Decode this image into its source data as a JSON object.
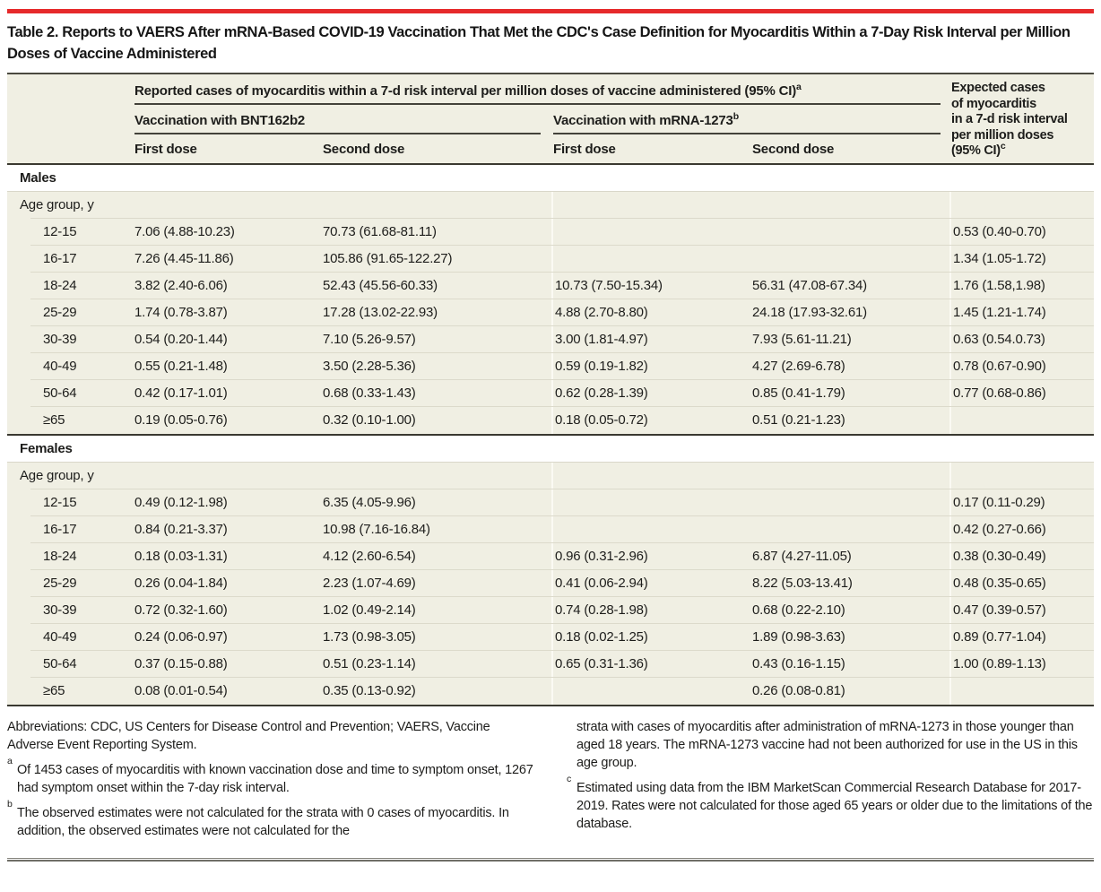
{
  "title": "Table 2. Reports to VAERS After mRNA-Based COVID-19 Vaccination That Met the CDC's Case Definition for Myocarditis Within a 7-Day Risk Interval per Million Doses of Vaccine Administered",
  "colors": {
    "accent_red": "#e62a2b",
    "table_background": "#f0efe3"
  },
  "table": {
    "header": {
      "spanner": "Reported cases of myocarditis within a 7-d risk interval per million doses of vaccine administered (95% CI)",
      "spanner_sup": "a",
      "group_bnt": "Vaccination with BNT162b2",
      "group_mrna": "Vaccination with mRNA-1273",
      "group_mrna_sup": "b",
      "dose_cols": [
        "First dose",
        "Second dose",
        "First dose",
        "Second dose"
      ],
      "expected_lines": [
        "Expected cases",
        "of myocarditis",
        "in a 7-d risk interval",
        "per million doses",
        "(95% CI)"
      ],
      "expected_sup": "c"
    },
    "sections": [
      {
        "label": "Males",
        "subheader": "Age group, y",
        "rows": [
          {
            "age": "12-15",
            "values": [
              "7.06 (4.88-10.23)",
              "70.73 (61.68-81.11)",
              "",
              "",
              "0.53 (0.40-0.70)"
            ]
          },
          {
            "age": "16-17",
            "values": [
              "7.26 (4.45-11.86)",
              "105.86 (91.65-122.27)",
              "",
              "",
              "1.34 (1.05-1.72)"
            ]
          },
          {
            "age": "18-24",
            "values": [
              "3.82 (2.40-6.06)",
              "52.43 (45.56-60.33)",
              "10.73 (7.50-15.34)",
              "56.31 (47.08-67.34)",
              "1.76 (1.58,1.98)"
            ]
          },
          {
            "age": "25-29",
            "values": [
              "1.74 (0.78-3.87)",
              "17.28 (13.02-22.93)",
              "4.88 (2.70-8.80)",
              "24.18 (17.93-32.61)",
              "1.45 (1.21-1.74)"
            ]
          },
          {
            "age": "30-39",
            "values": [
              "0.54 (0.20-1.44)",
              "7.10 (5.26-9.57)",
              "3.00 (1.81-4.97)",
              "7.93 (5.61-11.21)",
              "0.63 (0.54.0.73)"
            ]
          },
          {
            "age": "40-49",
            "values": [
              "0.55 (0.21-1.48)",
              "3.50 (2.28-5.36)",
              "0.59 (0.19-1.82)",
              "4.27 (2.69-6.78)",
              "0.78 (0.67-0.90)"
            ]
          },
          {
            "age": "50-64",
            "values": [
              "0.42 (0.17-1.01)",
              "0.68 (0.33-1.43)",
              "0.62 (0.28-1.39)",
              "0.85 (0.41-1.79)",
              "0.77 (0.68-0.86)"
            ]
          },
          {
            "age": "≥65",
            "values": [
              "0.19 (0.05-0.76)",
              "0.32 (0.10-1.00)",
              "0.18 (0.05-0.72)",
              "0.51 (0.21-1.23)",
              ""
            ]
          }
        ]
      },
      {
        "label": "Females",
        "subheader": "Age group, y",
        "rows": [
          {
            "age": "12-15",
            "values": [
              "0.49 (0.12-1.98)",
              "6.35 (4.05-9.96)",
              "",
              "",
              "0.17 (0.11-0.29)"
            ]
          },
          {
            "age": "16-17",
            "values": [
              "0.84 (0.21-3.37)",
              "10.98 (7.16-16.84)",
              "",
              "",
              "0.42 (0.27-0.66)"
            ]
          },
          {
            "age": "18-24",
            "values": [
              "0.18 (0.03-1.31)",
              "4.12 (2.60-6.54)",
              "0.96 (0.31-2.96)",
              "6.87 (4.27-11.05)",
              "0.38 (0.30-0.49)"
            ]
          },
          {
            "age": "25-29",
            "values": [
              "0.26 (0.04-1.84)",
              "2.23 (1.07-4.69)",
              "0.41 (0.06-2.94)",
              "8.22 (5.03-13.41)",
              "0.48 (0.35-0.65)"
            ]
          },
          {
            "age": "30-39",
            "values": [
              "0.72 (0.32-1.60)",
              "1.02 (0.49-2.14)",
              "0.74 (0.28-1.98)",
              "0.68 (0.22-2.10)",
              "0.47 (0.39-0.57)"
            ]
          },
          {
            "age": "40-49",
            "values": [
              "0.24 (0.06-0.97)",
              "1.73 (0.98-3.05)",
              "0.18 (0.02-1.25)",
              "1.89 (0.98-3.63)",
              "0.89 (0.77-1.04)"
            ]
          },
          {
            "age": "50-64",
            "values": [
              "0.37 (0.15-0.88)",
              "0.51 (0.23-1.14)",
              "0.65 (0.31-1.36)",
              "0.43 (0.16-1.15)",
              "1.00 (0.89-1.13)"
            ]
          },
          {
            "age": "≥65",
            "values": [
              "0.08 (0.01-0.54)",
              "0.35 (0.13-0.92)",
              "",
              "0.26 (0.08-0.81)",
              ""
            ]
          }
        ]
      }
    ]
  },
  "footnotes": {
    "abbreviations": "Abbreviations: CDC, US Centers for Disease Control and Prevention; VAERS, Vaccine Adverse Event Reporting System.",
    "left": [
      {
        "marker": "a",
        "text": "Of 1453 cases of myocarditis with known vaccination dose and time to symptom onset, 1267 had symptom onset within the 7-day risk interval."
      },
      {
        "marker": "b",
        "text": "The observed estimates were not calculated for the strata with 0 cases of myocarditis. In addition, the observed estimates were not calculated for the"
      }
    ],
    "right": [
      {
        "marker": "",
        "text": "strata with cases of myocarditis after administration of mRNA-1273 in those younger than aged 18 years. The mRNA-1273 vaccine had not been authorized for use in the US in this age group."
      },
      {
        "marker": "c",
        "text": "Estimated using data from the IBM MarketScan Commercial Research Database for 2017-2019. Rates were not calculated for those aged 65 years or older due to the limitations of the database."
      }
    ]
  }
}
